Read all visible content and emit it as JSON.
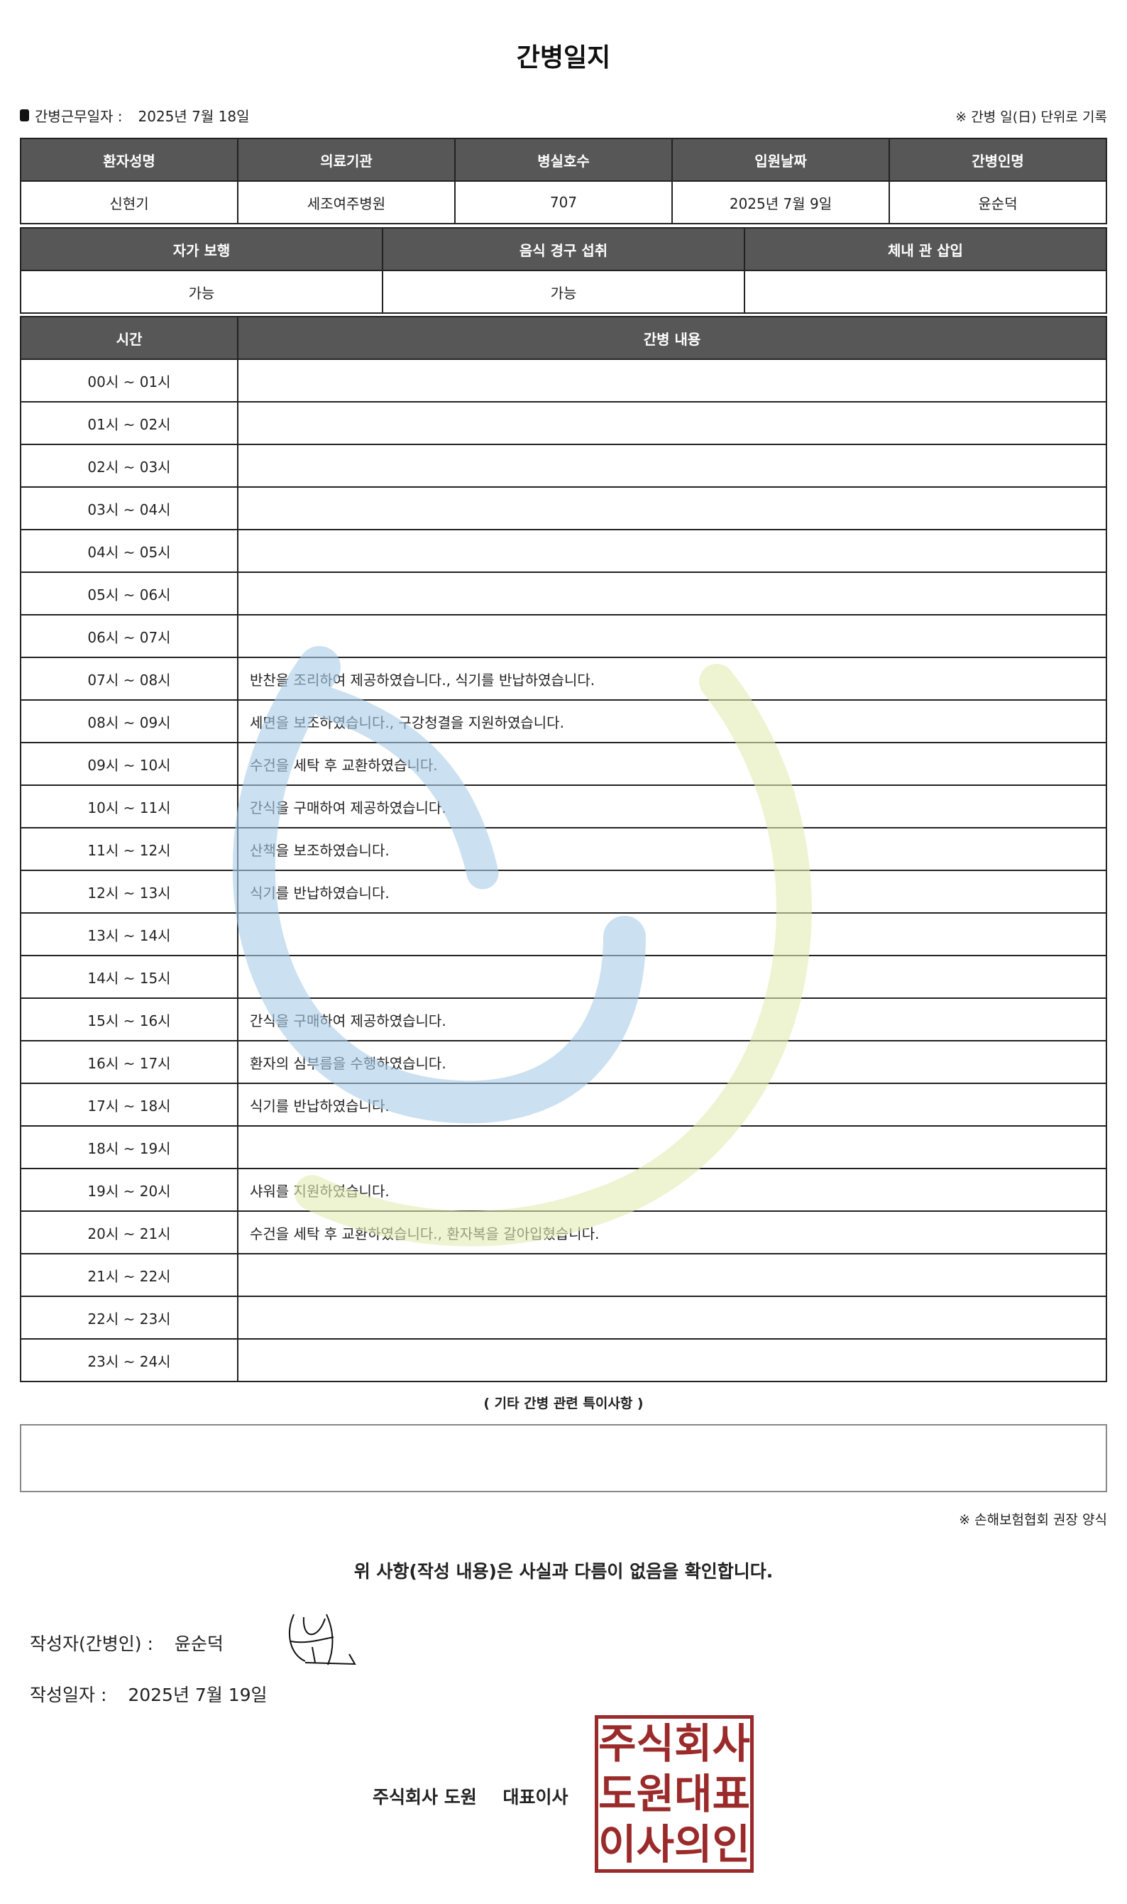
{
  "title": "간병일지",
  "work_date_label": "간병근무일자  :",
  "work_date": "2025년 7월 18일",
  "day_note": "※ 간병 일(日) 단위로 기록",
  "info": {
    "headers": [
      "환자성명",
      "의료기관",
      "병실호수",
      "입원날짜",
      "간병인명"
    ],
    "values": [
      "신현기",
      "세조여주병원",
      "707",
      "2025년 7월 9일",
      "윤순덕"
    ]
  },
  "status": {
    "headers": [
      "자가 보행",
      "음식 경구 섭취",
      "체내 관 삽입"
    ],
    "values": [
      "가능",
      "가능",
      ""
    ]
  },
  "log": {
    "headers": [
      "시간",
      "간병 내용"
    ],
    "rows": [
      [
        "00시 ~ 01시",
        ""
      ],
      [
        "01시 ~ 02시",
        ""
      ],
      [
        "02시 ~ 03시",
        ""
      ],
      [
        "03시 ~ 04시",
        ""
      ],
      [
        "04시 ~ 05시",
        ""
      ],
      [
        "05시 ~ 06시",
        ""
      ],
      [
        "06시 ~ 07시",
        ""
      ],
      [
        "07시 ~ 08시",
        "반찬을 조리하여 제공하였습니다., 식기를 반납하였습니다."
      ],
      [
        "08시 ~ 09시",
        "세면을 보조하였습니다., 구강청결을 지원하였습니다."
      ],
      [
        "09시 ~ 10시",
        "수건을 세탁 후 교환하였습니다."
      ],
      [
        "10시 ~ 11시",
        "간식을 구매하여 제공하였습니다."
      ],
      [
        "11시 ~ 12시",
        "산책을 보조하였습니다."
      ],
      [
        "12시 ~ 13시",
        "식기를 반납하였습니다."
      ],
      [
        "13시 ~ 14시",
        ""
      ],
      [
        "14시 ~ 15시",
        ""
      ],
      [
        "15시 ~ 16시",
        "간식을 구매하여 제공하였습니다."
      ],
      [
        "16시 ~ 17시",
        "환자의 심부름을 수행하였습니다."
      ],
      [
        "17시 ~ 18시",
        "식기를 반납하였습니다."
      ],
      [
        "18시 ~ 19시",
        ""
      ],
      [
        "19시 ~ 20시",
        "샤워를 지원하였습니다."
      ],
      [
        "20시 ~ 21시",
        "수건을 세탁 후 교환하였습니다., 환자복을 갈아입혔습니다."
      ],
      [
        "21시 ~ 22시",
        ""
      ],
      [
        "22시 ~ 23시",
        ""
      ],
      [
        "23시 ~ 24시",
        ""
      ]
    ]
  },
  "remarks_title": "( 기타 간병 관련 특이사항 )",
  "remarks": "",
  "insurance_note": "※ 손해보험협회 권장 양식",
  "confirm": "위 사항(작성 내용)은 사실과 다름이 없음을 확인합니다.",
  "writer_label": "작성자(간병인) :",
  "writer": "윤순덕",
  "write_date_label": "작성일자 :",
  "write_date": "2025년 7월 19일",
  "company": "주식회사 도원",
  "ceo": "대표이사",
  "seal_text": [
    "주",
    "식",
    "회",
    "사",
    "도",
    "원",
    "대",
    "표",
    "이",
    "사",
    "의",
    "인"
  ],
  "colors": {
    "header_bg": "#575757",
    "seal": "#9b2a2a",
    "watermark_blue": "#a9cde8",
    "watermark_green": "#e4edb4"
  }
}
